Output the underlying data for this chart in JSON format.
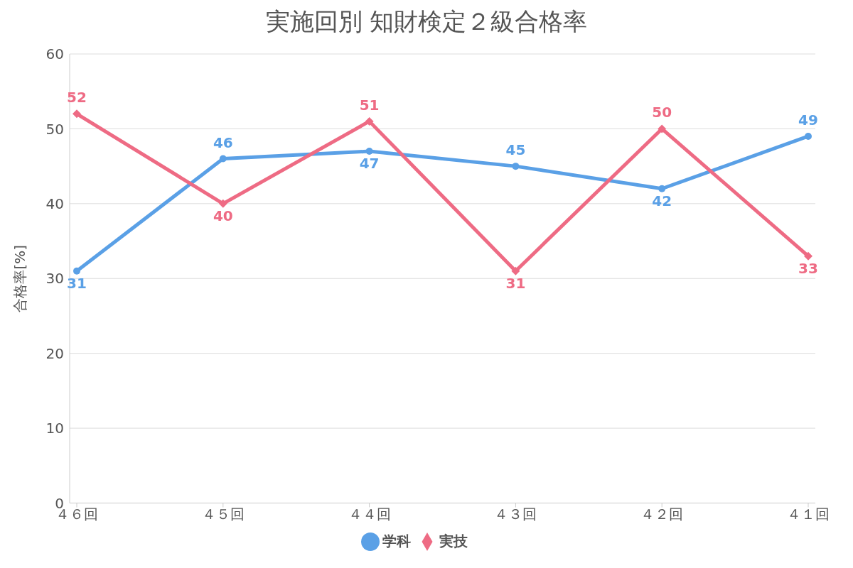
{
  "chart_data": {
    "type": "line",
    "title": "実施回別 知財検定２級合格率",
    "ylabel": "合格率[%]",
    "categories": [
      "４６回",
      "４５回",
      "４４回",
      "４３回",
      "４２回",
      "４１回"
    ],
    "series": [
      {
        "name": "学科",
        "color": "#5aa0e6",
        "values": [
          31,
          46,
          47,
          45,
          42,
          49
        ],
        "marker": "circle"
      },
      {
        "name": "実技",
        "color": "#ee6b84",
        "values": [
          52,
          40,
          51,
          31,
          50,
          33
        ],
        "marker": "diamond"
      }
    ],
    "ylim": [
      0,
      60
    ],
    "yticks": [
      0,
      10,
      20,
      30,
      40,
      50,
      60
    ],
    "grid": true,
    "legend": "bottom",
    "data_labels": true
  }
}
